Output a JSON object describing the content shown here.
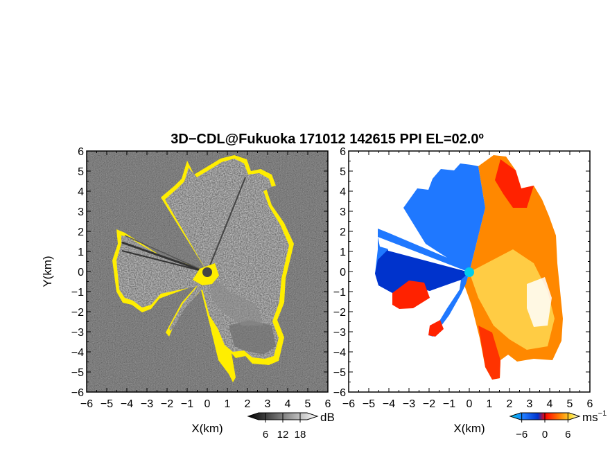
{
  "chart_data": {
    "title": "3D−CDL@Fukuoka 171012 142615 PPI EL=02.0º",
    "panels": [
      {
        "type": "heatmap",
        "name": "reflectivity",
        "xlabel": "X(km)",
        "ylabel": "Y(km)",
        "xlim": [
          -6,
          6
        ],
        "ylim": [
          -6,
          6
        ],
        "x_ticks": [
          -6,
          -5,
          -4,
          -3,
          -2,
          -1,
          0,
          1,
          2,
          3,
          4,
          5,
          6
        ],
        "y_ticks": [
          -6,
          -5,
          -4,
          -3,
          -2,
          -1,
          0,
          1,
          2,
          3,
          4,
          5,
          6
        ],
        "x_tick_labels": [
          "−6",
          "−5",
          "−4",
          "−3",
          "−2",
          "−1",
          "0",
          "1",
          "2",
          "3",
          "4",
          "5",
          "6"
        ],
        "y_tick_labels": [
          "−6",
          "−5",
          "−4",
          "−3",
          "−2",
          "−1",
          "0",
          "1",
          "2",
          "3",
          "4",
          "5",
          "6"
        ],
        "colorbar": {
          "unit": "dB",
          "ticks": [
            6,
            12,
            18
          ],
          "tick_labels": [
            "6",
            "12",
            "18"
          ],
          "range": [
            0,
            24
          ],
          "colors": [
            "#000000",
            "#ffffff"
          ],
          "threshold_color": "#ffee00"
        }
      },
      {
        "type": "heatmap",
        "name": "doppler-velocity",
        "xlabel": "X(km)",
        "ylabel": "",
        "xlim": [
          -6,
          6
        ],
        "ylim": [
          -6,
          6
        ],
        "x_ticks": [
          -6,
          -5,
          -4,
          -3,
          -2,
          -1,
          0,
          1,
          2,
          3,
          4,
          5,
          6
        ],
        "y_ticks": [
          -6,
          -5,
          -4,
          -3,
          -2,
          -1,
          0,
          1,
          2,
          3,
          4,
          5,
          6
        ],
        "x_tick_labels": [
          "−6",
          "−5",
          "−4",
          "−3",
          "−2",
          "−1",
          "0",
          "1",
          "2",
          "3",
          "4",
          "5",
          "6"
        ],
        "y_tick_labels": [
          "−6",
          "−5",
          "−4",
          "−3",
          "−2",
          "−1",
          "0",
          "1",
          "2",
          "3",
          "4",
          "5",
          "6"
        ],
        "colorbar": {
          "unit": "ms",
          "unit_exp": "−1",
          "ticks": [
            -6,
            0,
            6
          ],
          "tick_labels": [
            "−6",
            "0",
            "6"
          ],
          "range": [
            -9,
            9
          ],
          "colors": [
            "#0033cc",
            "#1f78ff",
            "#00ccee",
            "#ff0000",
            "#ff7700",
            "#ffdd33",
            "#ffffff"
          ]
        }
      }
    ],
    "radar_site": {
      "x": 0,
      "y": 0
    },
    "echo_colors": {
      "background_dark": "#1a1a1a",
      "echo_light": "#d0d0d0",
      "yellow": "#ffee00",
      "radar_dot_left": "#444444",
      "radar_dot_right": "#00ccee",
      "approach_blue": "#1f78ff",
      "approach_dark_blue": "#0033cc",
      "recede_red": "#ff2200",
      "recede_orange": "#ff8800",
      "recede_yellow": "#ffcc44"
    }
  }
}
